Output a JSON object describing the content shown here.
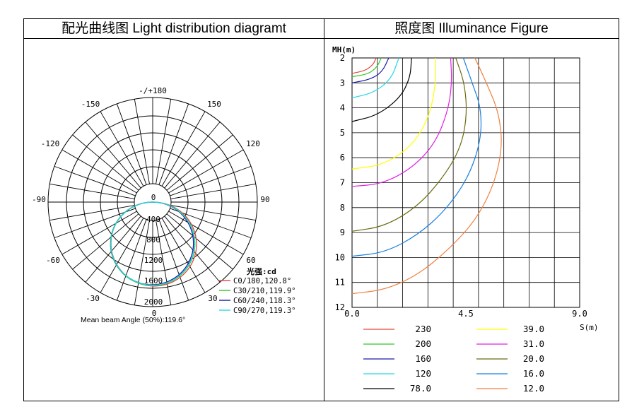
{
  "headers": {
    "left": "配光曲线图 Light distribution diagramt",
    "right": "照度图 Illuminance Figure"
  },
  "chart_data": [
    {
      "type": "polar",
      "angle_labels": {
        "top": "-/+180",
        "n150": "-150",
        "p150": "150",
        "n120": "-120",
        "p120": "120",
        "n90": "-90",
        "p90": "90",
        "n60": "-60",
        "p60": "60",
        "n30": "-30",
        "p30": "30",
        "bottom": "0"
      },
      "radial_ticks": [
        "0",
        "400",
        "800",
        "1200",
        "1600",
        "2000"
      ],
      "rmax": 2000,
      "legend_title": "光强:cd",
      "series": [
        {
          "name": "C0/180,120.8°",
          "color": "#e04a3a"
        },
        {
          "name": "C30/210,119.9°",
          "color": "#2ec82e"
        },
        {
          "name": "C60/240,118.3°",
          "color": "#1a1aa8"
        },
        {
          "name": "C90/270,119.3°",
          "color": "#28d8e0"
        }
      ],
      "beam_note": "Mean beam Angle (50%):119.6°"
    },
    {
      "type": "contour",
      "xlabel": "S(m)",
      "ylabel": "MH(m)",
      "x_ticks": [
        "0.0",
        "4.5",
        "9.0"
      ],
      "y_ticks": [
        "2",
        "3",
        "4",
        "5",
        "6",
        "7",
        "8",
        "9",
        "10",
        "11",
        "12"
      ],
      "xlim": [
        0,
        9
      ],
      "ylim": [
        2,
        12
      ],
      "levels": [
        {
          "value": "230",
          "color": "#e04a3a",
          "points": [
            [
              0,
              2.62
            ],
            [
              0.55,
              2.5
            ],
            [
              0.85,
              2.25
            ],
            [
              0.95,
              2.0
            ]
          ]
        },
        {
          "value": "200",
          "color": "#2ec82e",
          "points": [
            [
              0,
              2.75
            ],
            [
              0.65,
              2.65
            ],
            [
              1.0,
              2.35
            ],
            [
              1.15,
              2.0
            ]
          ]
        },
        {
          "value": "160",
          "color": "#1a1aa8",
          "points": [
            [
              0,
              3.0
            ],
            [
              0.75,
              2.85
            ],
            [
              1.2,
              2.55
            ],
            [
              1.45,
              2.0
            ]
          ]
        },
        {
          "value": "120",
          "color": "#28d8e0",
          "points": [
            [
              0,
              3.6
            ],
            [
              0.85,
              3.4
            ],
            [
              1.55,
              2.85
            ],
            [
              1.85,
              2.0
            ]
          ]
        },
        {
          "value": "78.0",
          "color": "#000000",
          "points": [
            [
              0,
              4.55
            ],
            [
              1.0,
              4.3
            ],
            [
              1.9,
              3.6
            ],
            [
              2.3,
              2.8
            ],
            [
              2.35,
              2.0
            ]
          ]
        },
        {
          "value": "39.0",
          "color": "#ffff00",
          "points": [
            [
              0,
              6.45
            ],
            [
              1.2,
              6.3
            ],
            [
              2.3,
              5.6
            ],
            [
              3.0,
              4.5
            ],
            [
              3.3,
              3.2
            ],
            [
              3.3,
              2.0
            ]
          ]
        },
        {
          "value": "31.0",
          "color": "#e020e0",
          "points": [
            [
              0,
              7.15
            ],
            [
              1.2,
              7.05
            ],
            [
              2.4,
              6.4
            ],
            [
              3.3,
              5.4
            ],
            [
              3.8,
              4.1
            ],
            [
              3.95,
              3.0
            ],
            [
              3.9,
              2.0
            ]
          ]
        },
        {
          "value": "20.0",
          "color": "#6b6b10",
          "points": [
            [
              0,
              8.95
            ],
            [
              1.3,
              8.75
            ],
            [
              2.6,
              7.95
            ],
            [
              3.6,
              6.8
            ],
            [
              4.3,
              5.6
            ],
            [
              4.55,
              4.3
            ],
            [
              4.45,
              3.0
            ],
            [
              4.1,
              2.0
            ]
          ]
        },
        {
          "value": "16.0",
          "color": "#1a7fe0",
          "points": [
            [
              0,
              9.95
            ],
            [
              1.3,
              9.8
            ],
            [
              2.6,
              9.1
            ],
            [
              3.7,
              8.1
            ],
            [
              4.6,
              6.8
            ],
            [
              5.1,
              5.3
            ],
            [
              5.1,
              4.0
            ],
            [
              4.75,
              3.0
            ],
            [
              4.4,
              2.0
            ]
          ]
        },
        {
          "value": "12.0",
          "color": "#f08040",
          "points": [
            [
              0,
              11.45
            ],
            [
              1.3,
              11.3
            ],
            [
              2.6,
              10.7
            ],
            [
              3.8,
              9.7
            ],
            [
              4.9,
              8.5
            ],
            [
              5.65,
              7.0
            ],
            [
              5.95,
              5.5
            ],
            [
              5.8,
              4.2
            ],
            [
              5.4,
              3.2
            ],
            [
              5.0,
              2.3
            ],
            [
              4.85,
              2.0
            ]
          ]
        }
      ]
    }
  ]
}
